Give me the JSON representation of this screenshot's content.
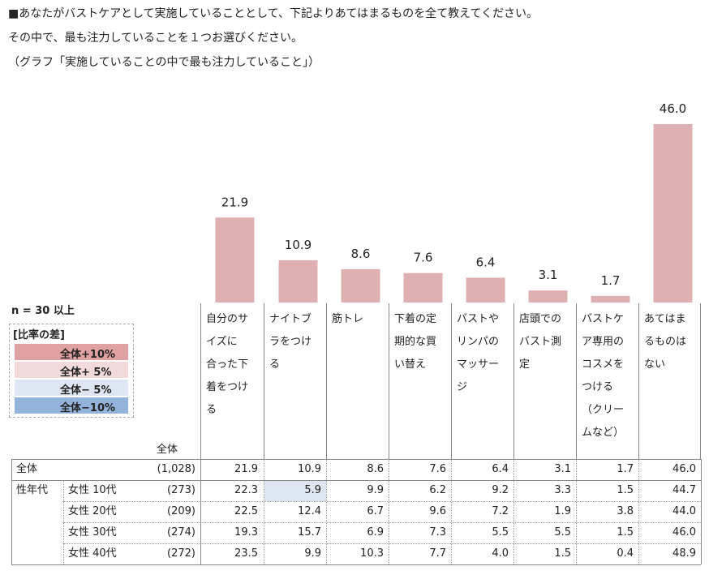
{
  "question": {
    "line1": "■あなたがバストケアとして実施していることとして、下記よりあてはまるものを全て教えてください。",
    "line2": "その中で、最も注力していることを１つお選びください。",
    "line3": "（グラフ「実施していることの中で最も注力していること」）"
  },
  "note": "n = 30 以上",
  "legend": {
    "title": "[比率の差]",
    "items": [
      {
        "label": "全体+10%",
        "color": "#e0a1a3"
      },
      {
        "label": "全体+ 5%",
        "color": "#f2d9da"
      },
      {
        "label": "全体− 5%",
        "color": "#dde6f2"
      },
      {
        "label": "全体−10%",
        "color": "#94b3dc"
      }
    ]
  },
  "table": {
    "total_header": "全体",
    "group_label": "性年代",
    "rows": [
      {
        "label": "全体",
        "sub": "",
        "n": "(1,028)",
        "values": [
          "21.9",
          "10.9",
          "8.6",
          "7.6",
          "6.4",
          "3.1",
          "1.7",
          "46.0"
        ]
      },
      {
        "label": "",
        "sub": "女性 10代",
        "n": "(273)",
        "values": [
          "22.3",
          "5.9",
          "9.9",
          "6.2",
          "9.2",
          "3.3",
          "1.5",
          "44.7"
        ]
      },
      {
        "label": "",
        "sub": "女性 20代",
        "n": "(209)",
        "values": [
          "22.5",
          "12.4",
          "6.7",
          "9.6",
          "7.2",
          "1.9",
          "3.8",
          "44.0"
        ]
      },
      {
        "label": "",
        "sub": "女性 30代",
        "n": "(274)",
        "values": [
          "19.3",
          "15.7",
          "6.9",
          "7.3",
          "5.5",
          "5.5",
          "1.5",
          "46.0"
        ]
      },
      {
        "label": "",
        "sub": "女性 40代",
        "n": "(272)",
        "values": [
          "23.5",
          "9.9",
          "10.3",
          "7.7",
          "4.0",
          "1.5",
          "0.4",
          "48.9"
        ]
      }
    ],
    "highlights": [
      {
        "row": 1,
        "col": 1,
        "color": "#dde6f2"
      }
    ]
  },
  "chart_data": {
    "type": "bar",
    "categories": [
      "自分のサイズに合った下着をつける",
      "ナイトブラをつける",
      "筋トレ",
      "下着の定期的な買い替え",
      "バストやリンパのマッサージ",
      "店頭でのバスト測定",
      "バストケア専用のコスメをつける（クリームなど）",
      "あてはまるものはない"
    ],
    "category_lines": [
      [
        "自分のサ",
        "イズに",
        "合った下",
        "着をつけ",
        "る"
      ],
      [
        "ナイトブ",
        "ラをつけ",
        "る"
      ],
      [
        "筋トレ"
      ],
      [
        "下着の定",
        "期的な買",
        "い替え"
      ],
      [
        "バストや",
        "リンパの",
        "マッサー",
        "ジ"
      ],
      [
        "店頭での",
        "バスト測",
        "定"
      ],
      [
        "バストケ",
        "ア専用の",
        "コスメを",
        "つける",
        "（クリー",
        "ムなど）"
      ],
      [
        "あてはま",
        "るものは",
        "ない"
      ]
    ],
    "values": [
      21.9,
      10.9,
      8.6,
      7.6,
      6.4,
      3.1,
      1.7,
      46.0
    ],
    "value_labels": [
      "21.9",
      "10.9",
      "8.6",
      "7.6",
      "6.4",
      "3.1",
      "1.7",
      "46.0"
    ],
    "bar_color": "#deb0b1",
    "ylim": [
      0,
      50
    ]
  }
}
